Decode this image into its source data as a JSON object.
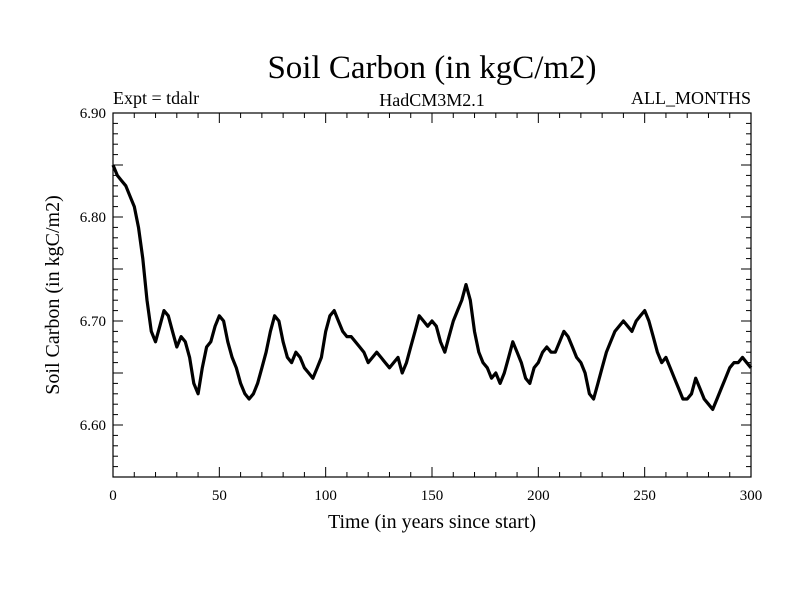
{
  "chart_data": {
    "type": "line",
    "title": "Soil Carbon (in kgC/m2)",
    "subtitle_left": "Expt = tdalr",
    "subtitle_center": "HadCM3M2.1",
    "subtitle_right": "ALL_MONTHS",
    "xlabel": "Time (in years since start)",
    "ylabel": "Soil Carbon (in kgC/m2)",
    "xlim": [
      0,
      300
    ],
    "ylim": [
      6.55,
      6.9
    ],
    "x_ticks": [
      0,
      50,
      100,
      150,
      200,
      250,
      300
    ],
    "y_ticks": [
      6.6,
      6.7,
      6.8,
      6.9
    ],
    "y_tick_labels": [
      "6.60",
      "6.70",
      "6.80",
      "6.90"
    ],
    "grid": false,
    "line_color": "#000000",
    "series": [
      {
        "x": [
          0,
          2,
          4,
          6,
          8,
          10,
          12,
          14,
          16,
          18,
          20,
          22,
          24,
          26,
          28,
          30,
          32,
          34,
          36,
          38,
          40,
          42,
          44,
          46,
          48,
          50,
          52,
          54,
          56,
          58,
          60,
          62,
          64,
          66,
          68,
          70,
          72,
          74,
          76,
          78,
          80,
          82,
          84,
          86,
          88,
          90,
          92,
          94,
          96,
          98,
          100,
          102,
          104,
          106,
          108,
          110,
          112,
          114,
          116,
          118,
          120,
          122,
          124,
          126,
          128,
          130,
          132,
          134,
          136,
          138,
          140,
          142,
          144,
          146,
          148,
          150,
          152,
          154,
          156,
          158,
          160,
          162,
          164,
          166,
          168,
          170,
          172,
          174,
          176,
          178,
          180,
          182,
          184,
          186,
          188,
          190,
          192,
          194,
          196,
          198,
          200,
          202,
          204,
          206,
          208,
          210,
          212,
          214,
          216,
          218,
          220,
          222,
          224,
          226,
          228,
          230,
          232,
          234,
          236,
          238,
          240,
          242,
          244,
          246,
          248,
          250,
          252,
          254,
          256,
          258,
          260,
          262,
          264,
          266,
          268,
          270,
          272,
          274,
          276,
          278,
          280,
          282,
          284,
          286,
          288,
          290,
          292,
          294,
          296,
          298,
          300
        ],
        "values": [
          6.85,
          6.84,
          6.835,
          6.83,
          6.82,
          6.81,
          6.79,
          6.76,
          6.72,
          6.69,
          6.68,
          6.695,
          6.71,
          6.705,
          6.69,
          6.675,
          6.685,
          6.68,
          6.665,
          6.64,
          6.63,
          6.655,
          6.675,
          6.68,
          6.695,
          6.705,
          6.7,
          6.68,
          6.665,
          6.655,
          6.64,
          6.63,
          6.625,
          6.63,
          6.64,
          6.655,
          6.67,
          6.69,
          6.705,
          6.7,
          6.68,
          6.665,
          6.66,
          6.67,
          6.665,
          6.655,
          6.65,
          6.645,
          6.655,
          6.665,
          6.69,
          6.705,
          6.71,
          6.7,
          6.69,
          6.685,
          6.685,
          6.68,
          6.675,
          6.67,
          6.66,
          6.665,
          6.67,
          6.665,
          6.66,
          6.655,
          6.66,
          6.665,
          6.65,
          6.66,
          6.675,
          6.69,
          6.705,
          6.7,
          6.695,
          6.7,
          6.695,
          6.68,
          6.67,
          6.685,
          6.7,
          6.71,
          6.72,
          6.735,
          6.72,
          6.69,
          6.67,
          6.66,
          6.655,
          6.645,
          6.65,
          6.64,
          6.65,
          6.665,
          6.68,
          6.67,
          6.66,
          6.645,
          6.64,
          6.655,
          6.66,
          6.67,
          6.675,
          6.67,
          6.67,
          6.68,
          6.69,
          6.685,
          6.675,
          6.665,
          6.66,
          6.65,
          6.63,
          6.625,
          6.64,
          6.655,
          6.67,
          6.68,
          6.69,
          6.695,
          6.7,
          6.695,
          6.69,
          6.7,
          6.705,
          6.71,
          6.7,
          6.685,
          6.67,
          6.66,
          6.665,
          6.655,
          6.645,
          6.635,
          6.625,
          6.625,
          6.63,
          6.645,
          6.635,
          6.625,
          6.62,
          6.615,
          6.625,
          6.635,
          6.645,
          6.655,
          6.66,
          6.66,
          6.665,
          6.66,
          6.655
        ]
      }
    ]
  }
}
